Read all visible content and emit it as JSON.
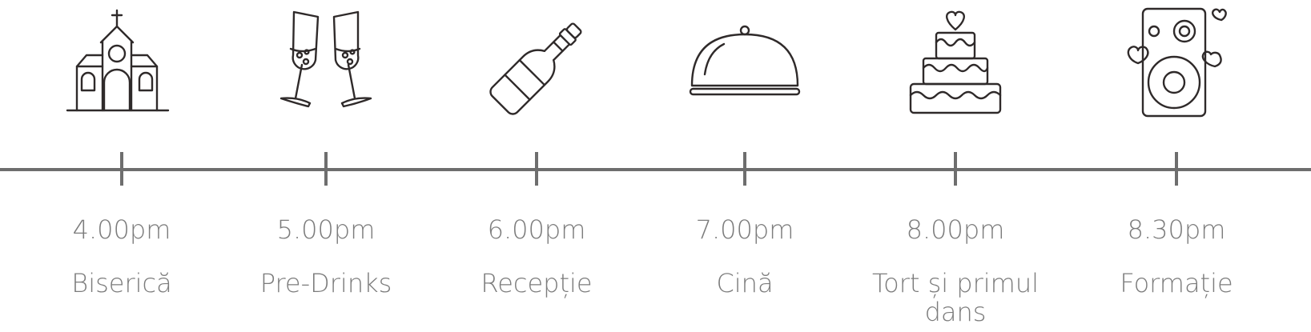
{
  "colors": {
    "line": "#6e6e6e",
    "text": "#7c7c7c",
    "icon_stroke": "#2f2a2a",
    "background": "#ffffff"
  },
  "events": [
    {
      "time": "4.00pm",
      "label": "Biserică",
      "icon": "church-icon"
    },
    {
      "time": "5.00pm",
      "label": "Pre-Drinks",
      "icon": "champagne-glasses-icon"
    },
    {
      "time": "6.00pm",
      "label": "Recepție",
      "icon": "champagne-bottle-icon"
    },
    {
      "time": "7.00pm",
      "label": "Cină",
      "icon": "food-cloche-icon"
    },
    {
      "time": "8.00pm",
      "label": "Tort și primul dans",
      "icon": "wedding-cake-icon"
    },
    {
      "time": "8.30pm",
      "label": "Formație",
      "icon": "speaker-hearts-icon"
    }
  ]
}
